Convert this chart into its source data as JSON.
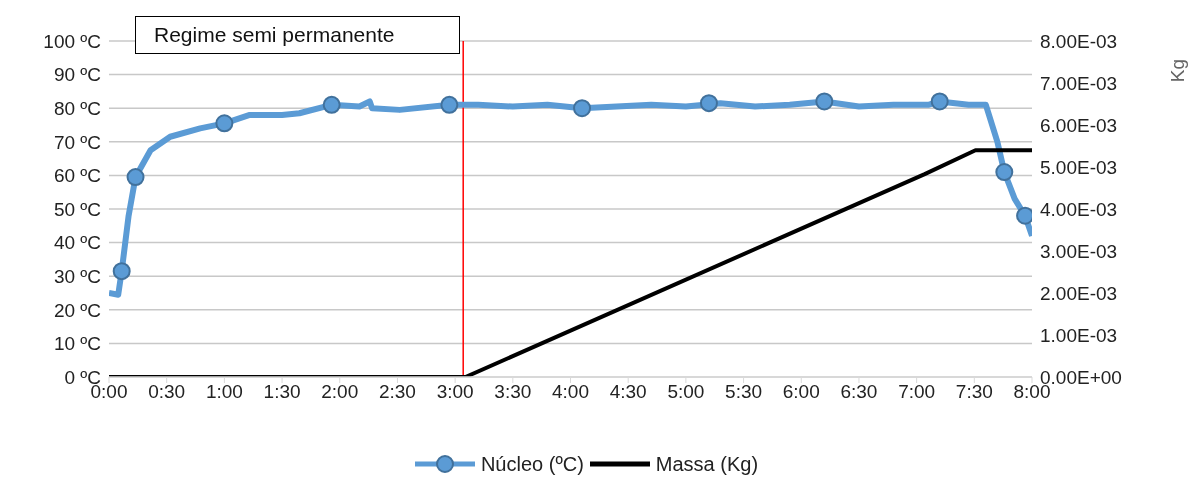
{
  "chart_data": {
    "type": "line",
    "xlim": [
      0,
      8
    ],
    "xticks": [
      {
        "value": 0,
        "label": "0:00"
      },
      {
        "value": 0.5,
        "label": "0:30"
      },
      {
        "value": 1,
        "label": "1:00"
      },
      {
        "value": 1.5,
        "label": "1:30"
      },
      {
        "value": 2,
        "label": "2:00"
      },
      {
        "value": 2.5,
        "label": "2:30"
      },
      {
        "value": 3,
        "label": "3:00"
      },
      {
        "value": 3.5,
        "label": "3:30"
      },
      {
        "value": 4,
        "label": "4:00"
      },
      {
        "value": 4.5,
        "label": "4:30"
      },
      {
        "value": 5,
        "label": "5:00"
      },
      {
        "value": 5.5,
        "label": "5:30"
      },
      {
        "value": 6,
        "label": "6:00"
      },
      {
        "value": 6.5,
        "label": "6:30"
      },
      {
        "value": 7,
        "label": "7:00"
      },
      {
        "value": 7.5,
        "label": "7:30"
      },
      {
        "value": 8,
        "label": "8:00"
      }
    ],
    "ylim": [
      0,
      100
    ],
    "yticks": [
      {
        "value": 0,
        "label": "0 ºC"
      },
      {
        "value": 10,
        "label": "10 ºC"
      },
      {
        "value": 20,
        "label": "20 ºC"
      },
      {
        "value": 30,
        "label": "30 ºC"
      },
      {
        "value": 40,
        "label": "40 ºC"
      },
      {
        "value": 50,
        "label": "50 ºC"
      },
      {
        "value": 60,
        "label": "60 ºC"
      },
      {
        "value": 70,
        "label": "70 ºC"
      },
      {
        "value": 80,
        "label": "80 ºC"
      },
      {
        "value": 90,
        "label": "90 ºC"
      },
      {
        "value": 100,
        "label": "100 ºC"
      }
    ],
    "y2label": "Kg",
    "y2lim": [
      0,
      0.008
    ],
    "y2ticks": [
      {
        "value": 0,
        "label": "0.00E+00"
      },
      {
        "value": 0.001,
        "label": "1.00E-03"
      },
      {
        "value": 0.002,
        "label": "2.00E-03"
      },
      {
        "value": 0.003,
        "label": "3.00E-03"
      },
      {
        "value": 0.004,
        "label": "4.00E-03"
      },
      {
        "value": 0.005,
        "label": "5.00E-03"
      },
      {
        "value": 0.006,
        "label": "6.00E-03"
      },
      {
        "value": 0.007,
        "label": "7.00E-03"
      },
      {
        "value": 0.008,
        "label": "8.00E-03"
      }
    ],
    "grid": "y",
    "legend": "bottom",
    "ref_lines": [
      {
        "axis": "x",
        "value": 3.07,
        "color": "#ff0000"
      }
    ],
    "annotations": [
      "Regime semi permanente"
    ],
    "series": [
      {
        "type": "scatter",
        "color": "#5b9bd5",
        "marker": "circle",
        "x": [
          0.11,
          0.23,
          1.0,
          1.93,
          2.95,
          4.1,
          5.2,
          6.2,
          7.2,
          7.76,
          7.94
        ],
        "values": [
          31.5,
          59.5,
          75.5,
          81,
          81,
          80,
          81.5,
          82,
          82,
          61,
          48
        ]
      },
      {
        "name": "Núcleo (ºC)",
        "color": "#5b9bd5",
        "marker": "none",
        "x": [
          0,
          0.08,
          0.11,
          0.17,
          0.23,
          0.36,
          0.53,
          0.79,
          1.0,
          1.22,
          1.5,
          1.65,
          1.93,
          2.17,
          2.26,
          2.28,
          2.52,
          2.95,
          3.2,
          3.5,
          3.8,
          4.1,
          4.4,
          4.7,
          5.0,
          5.3,
          5.6,
          5.9,
          6.2,
          6.5,
          6.8,
          7.1,
          7.2,
          7.45,
          7.6,
          7.7,
          7.76,
          7.85,
          7.94,
          8.0
        ],
        "values": [
          25,
          24.5,
          31.5,
          48,
          59.5,
          67.5,
          71.5,
          74,
          75.5,
          78,
          78,
          78.5,
          81,
          80.5,
          82,
          80,
          79.5,
          81,
          81,
          80.5,
          81,
          80,
          80.5,
          81,
          80.5,
          81.5,
          80.5,
          81,
          82,
          80.5,
          81,
          81,
          82,
          81,
          81,
          70,
          61,
          53,
          48,
          42
        ]
      },
      {
        "name": "Massa (Kg)",
        "color": "#000000",
        "axis": "y2",
        "marker": "none",
        "x": [
          0,
          3.09,
          7.07,
          7.51,
          8.0
        ],
        "values": [
          0,
          0,
          0.00483,
          0.0054,
          0.0054
        ]
      }
    ]
  }
}
